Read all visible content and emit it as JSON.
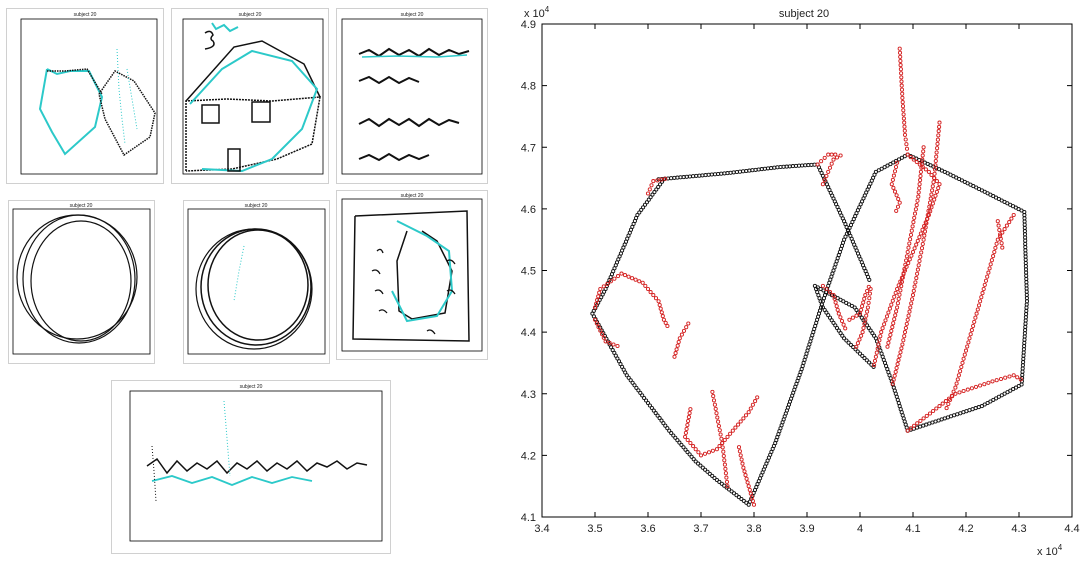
{
  "colors": {
    "pen_down": "#111111",
    "pen_up": "#d42020",
    "pen_up_small": "#27c8c8",
    "frame": "#000000"
  },
  "small_panel_title": "subject 20",
  "chart_data": {
    "type": "scatter",
    "title": "subject 20",
    "xlabel": "",
    "ylabel": "",
    "x_multiplier": "x 10",
    "x_multiplier_exp": "4",
    "y_multiplier": "x 10",
    "y_multiplier_exp": "4",
    "xlim": [
      3.4,
      4.4
    ],
    "ylim": [
      4.1,
      4.9
    ],
    "xticks": [
      "3.4",
      "3.5",
      "3.6",
      "3.7",
      "3.8",
      "3.9",
      "4",
      "4.1",
      "4.2",
      "4.3",
      "4.4"
    ],
    "yticks": [
      "4.1",
      "4.2",
      "4.3",
      "4.4",
      "4.5",
      "4.6",
      "4.7",
      "4.8",
      "4.9"
    ],
    "grid": false,
    "series": [
      {
        "pen": "down",
        "color": "#111111",
        "strokes": [
          [
            [
              3.62,
              4.648
            ],
            [
              3.75,
              4.658
            ],
            [
              3.85,
              4.668
            ],
            [
              3.92,
              4.672
            ]
          ],
          [
            [
              3.92,
              4.672
            ],
            [
              3.97,
              4.58
            ],
            [
              4.02,
              4.48
            ]
          ],
          [
            [
              3.63,
              4.648
            ],
            [
              3.58,
              4.59
            ],
            [
              3.52,
              4.47
            ],
            [
              3.495,
              4.43
            ],
            [
              3.56,
              4.33
            ],
            [
              3.64,
              4.24
            ],
            [
              3.69,
              4.19
            ],
            [
              3.73,
              4.16
            ],
            [
              3.79,
              4.12
            ]
          ],
          [
            [
              3.79,
              4.12
            ],
            [
              3.84,
              4.22
            ],
            [
              3.89,
              4.34
            ],
            [
              3.93,
              4.45
            ],
            [
              3.97,
              4.55
            ],
            [
              4.03,
              4.66
            ],
            [
              4.09,
              4.688
            ]
          ],
          [
            [
              4.09,
              4.688
            ],
            [
              4.16,
              4.66
            ],
            [
              4.23,
              4.63
            ],
            [
              4.31,
              4.595
            ]
          ],
          [
            [
              4.31,
              4.595
            ],
            [
              4.315,
              4.45
            ],
            [
              4.305,
              4.315
            ]
          ],
          [
            [
              4.305,
              4.315
            ],
            [
              4.23,
              4.28
            ],
            [
              4.16,
              4.26
            ],
            [
              4.09,
              4.24
            ]
          ],
          [
            [
              4.09,
              4.24
            ],
            [
              4.06,
              4.32
            ],
            [
              4.03,
              4.39
            ],
            [
              3.99,
              4.44
            ],
            [
              3.915,
              4.475
            ]
          ],
          [
            [
              3.915,
              4.475
            ],
            [
              3.93,
              4.44
            ],
            [
              3.97,
              4.39
            ],
            [
              4.03,
              4.34
            ]
          ]
        ]
      },
      {
        "pen": "up",
        "color": "#d42020",
        "strokes": [
          [
            [
              3.6,
              4.625
            ],
            [
              3.61,
              4.645
            ],
            [
              3.64,
              4.65
            ]
          ],
          [
            [
              3.92,
              4.672
            ],
            [
              3.94,
              4.688
            ],
            [
              3.96,
              4.688
            ]
          ],
          [
            [
              3.5,
              4.44
            ],
            [
              3.51,
              4.47
            ],
            [
              3.55,
              4.495
            ],
            [
              3.59,
              4.48
            ],
            [
              3.62,
              4.45
            ],
            [
              3.63,
              4.42
            ],
            [
              3.64,
              4.405
            ]
          ],
          [
            [
              3.5,
              4.42
            ],
            [
              3.52,
              4.385
            ],
            [
              3.55,
              4.375
            ]
          ],
          [
            [
              3.65,
              4.36
            ],
            [
              3.66,
              4.39
            ],
            [
              3.68,
              4.42
            ]
          ],
          [
            [
              3.68,
              4.275
            ],
            [
              3.67,
              4.23
            ],
            [
              3.7,
              4.2
            ],
            [
              3.73,
              4.21
            ],
            [
              3.76,
              4.24
            ],
            [
              3.79,
              4.27
            ],
            [
              3.81,
              4.3
            ]
          ],
          [
            [
              3.8,
              4.12
            ],
            [
              3.79,
              4.15
            ],
            [
              3.78,
              4.18
            ],
            [
              3.77,
              4.22
            ]
          ],
          [
            [
              3.75,
              4.15
            ],
            [
              3.74,
              4.22
            ],
            [
              3.72,
              4.31
            ]
          ],
          [
            [
              3.93,
              4.64
            ],
            [
              3.95,
              4.68
            ],
            [
              3.97,
              4.69
            ]
          ],
          [
            [
              3.98,
              4.42
            ],
            [
              4.0,
              4.43
            ],
            [
              4.01,
              4.46
            ],
            [
              4.02,
              4.48
            ]
          ],
          [
            [
              4.02,
              4.47
            ],
            [
              4.015,
              4.44
            ],
            [
              4.005,
              4.4
            ],
            [
              3.99,
              4.37
            ]
          ],
          [
            [
              4.075,
              4.86
            ],
            [
              4.08,
              4.78
            ],
            [
              4.085,
              4.72
            ],
            [
              4.09,
              4.69
            ]
          ],
          [
            [
              4.07,
              4.675
            ],
            [
              4.06,
              4.64
            ],
            [
              4.075,
              4.61
            ],
            [
              4.065,
              4.59
            ]
          ],
          [
            [
              4.09,
              4.688
            ],
            [
              4.13,
              4.66
            ],
            [
              4.15,
              4.64
            ],
            [
              4.13,
              4.59
            ],
            [
              4.1,
              4.53
            ],
            [
              4.07,
              4.47
            ],
            [
              4.04,
              4.4
            ],
            [
              4.025,
              4.34
            ]
          ],
          [
            [
              4.12,
              4.7
            ],
            [
              4.11,
              4.62
            ],
            [
              4.09,
              4.53
            ],
            [
              4.07,
              4.44
            ],
            [
              4.05,
              4.37
            ]
          ],
          [
            [
              4.15,
              4.74
            ],
            [
              4.14,
              4.65
            ],
            [
              4.12,
              4.55
            ],
            [
              4.1,
              4.46
            ],
            [
              4.08,
              4.38
            ],
            [
              4.06,
              4.31
            ]
          ],
          [
            [
              4.29,
              4.59
            ],
            [
              4.26,
              4.55
            ],
            [
              4.24,
              4.49
            ],
            [
              4.22,
              4.43
            ],
            [
              4.2,
              4.37
            ],
            [
              4.18,
              4.31
            ],
            [
              4.16,
              4.27
            ]
          ],
          [
            [
              4.26,
              4.58
            ],
            [
              4.27,
              4.53
            ]
          ],
          [
            [
              4.09,
              4.24
            ],
            [
              4.12,
              4.26
            ],
            [
              4.18,
              4.3
            ],
            [
              4.25,
              4.32
            ],
            [
              4.29,
              4.33
            ],
            [
              4.31,
              4.32
            ]
          ],
          [
            [
              3.93,
              4.475
            ],
            [
              3.95,
              4.46
            ],
            [
              3.96,
              4.43
            ],
            [
              3.975,
              4.4
            ]
          ]
        ]
      }
    ]
  }
}
